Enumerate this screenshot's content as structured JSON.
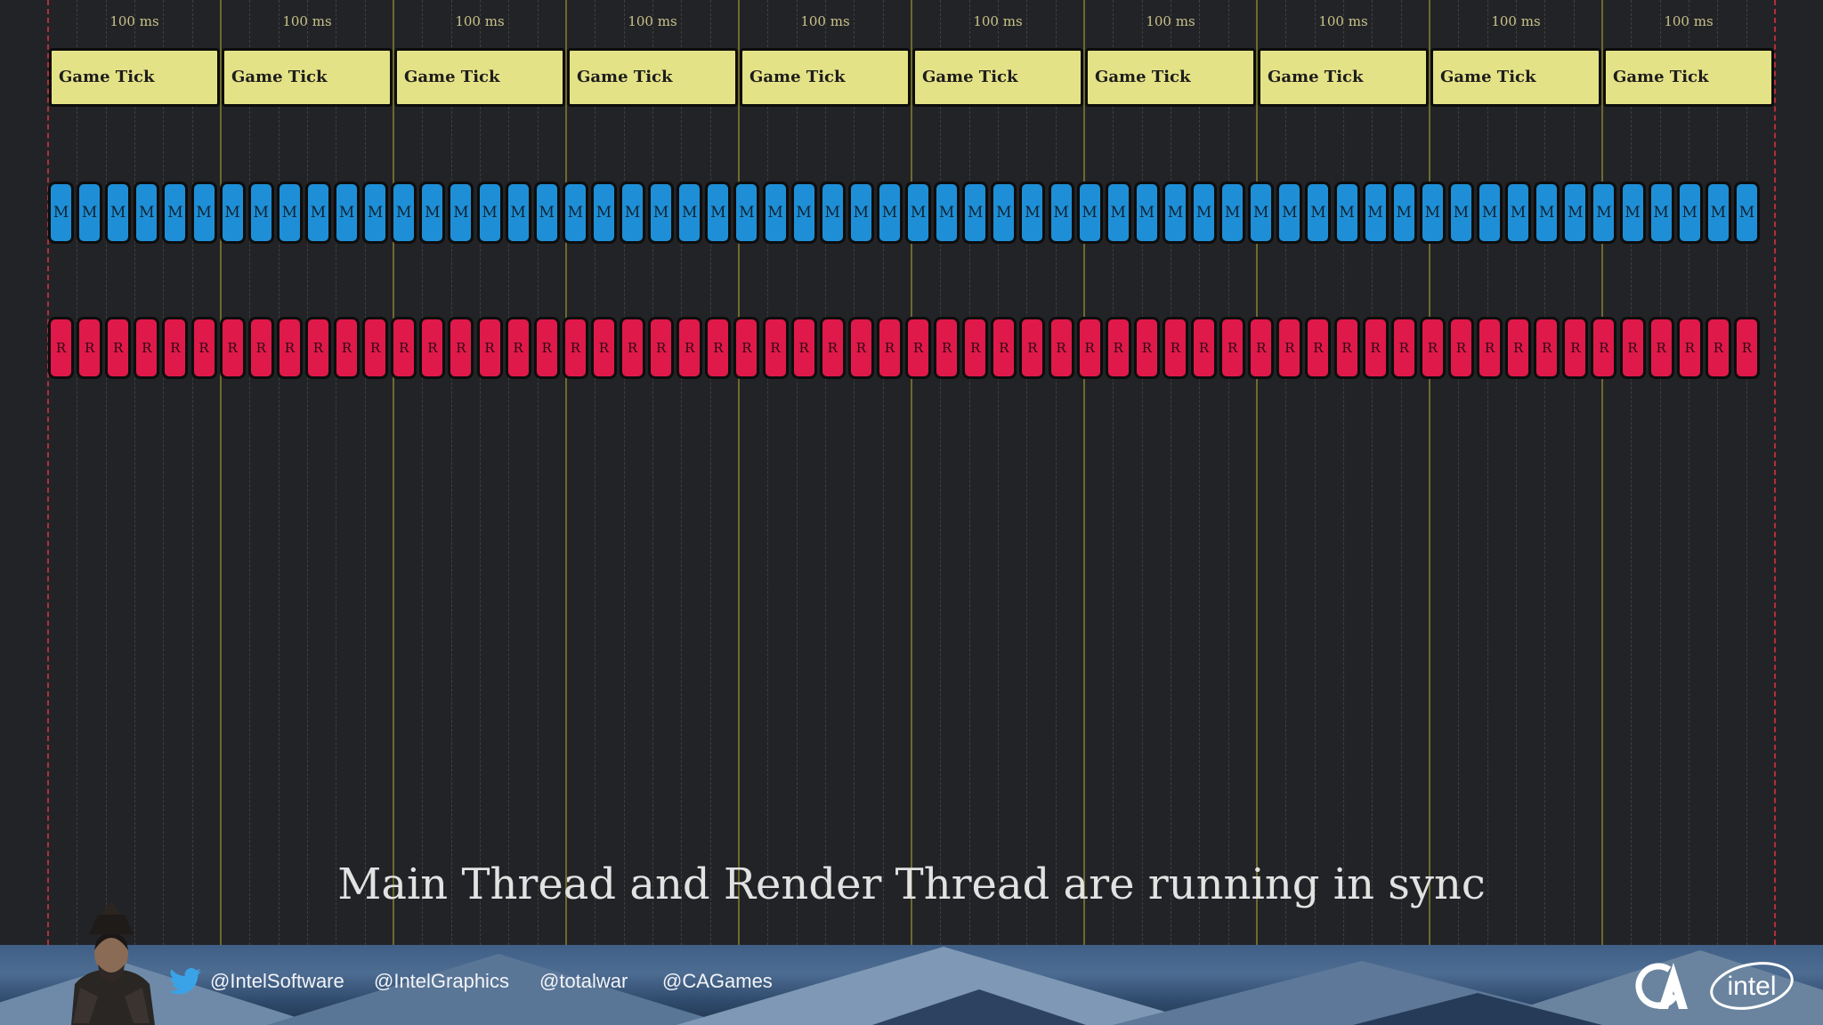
{
  "timeline": {
    "interval_label": "100 ms",
    "intervals": 10,
    "game_tick": {
      "label": "Game Tick",
      "count": 10,
      "color": "#e4e286"
    },
    "main_thread": {
      "letter": "M",
      "count": 60,
      "color": "#1e8fd6"
    },
    "render_thread": {
      "letter": "R",
      "count": 60,
      "color": "#e0194b"
    }
  },
  "caption": "Main Thread and Render Thread are running in sync",
  "footer": {
    "icons": [
      "twitter-icon",
      "ca-logo",
      "intel-logo"
    ],
    "handles": [
      "@IntelSoftware",
      "@IntelGraphics",
      "@totalwar",
      "@CAGames"
    ],
    "intel_logo_text": "intel"
  }
}
